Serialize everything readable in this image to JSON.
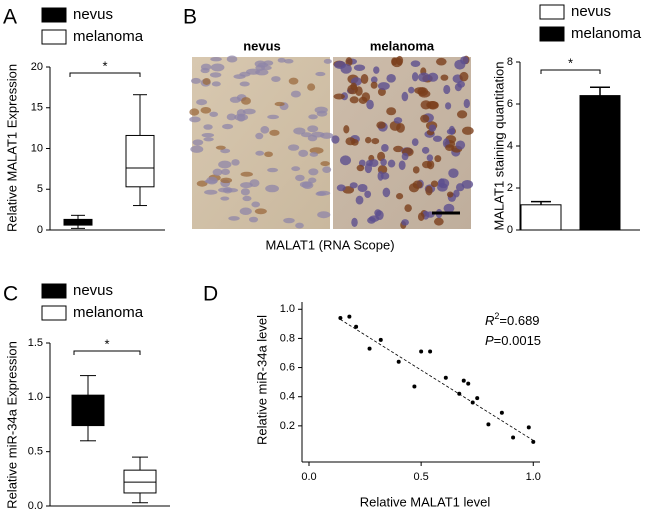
{
  "chart_data": [
    {
      "type": "box",
      "panel": "A",
      "y_label": "Relative MALAT1 Expression",
      "annotation": "*",
      "series": [
        {
          "name": "nevus",
          "color": "#000000",
          "min": 0.2,
          "q1": 0.6,
          "median": 0.9,
          "q3": 1.3,
          "max": 1.8
        },
        {
          "name": "melanoma",
          "color": "#ffffff",
          "min": 3,
          "q1": 5.3,
          "median": 7.6,
          "q3": 11.6,
          "max": 16.6
        }
      ],
      "ylim": [
        0,
        20
      ],
      "yticks": [
        0,
        5,
        10,
        15,
        20
      ]
    },
    {
      "type": "bar",
      "panel": "B",
      "y_label": "MALAT1 staining quantitation",
      "annotation": "*",
      "image_labels": [
        "nevus",
        "melanoma"
      ],
      "image_caption": "MALAT1 (RNA Scope)",
      "series": [
        {
          "name": "nevus",
          "color": "#ffffff",
          "value": 1.2,
          "error": 0.15
        },
        {
          "name": "melanoma",
          "color": "#000000",
          "value": 6.4,
          "error": 0.4
        }
      ],
      "ylim": [
        0,
        8
      ],
      "yticks": [
        0,
        2,
        4,
        6,
        8
      ]
    },
    {
      "type": "box",
      "panel": "C",
      "y_label": "Relative miR-34a Expression",
      "annotation": "*",
      "series": [
        {
          "name": "nevus",
          "color": "#000000",
          "min": 0.6,
          "q1": 0.74,
          "median": 0.88,
          "q3": 1.02,
          "max": 1.2
        },
        {
          "name": "melanoma",
          "color": "#ffffff",
          "min": 0.03,
          "q1": 0.12,
          "median": 0.22,
          "q3": 0.33,
          "max": 0.45
        }
      ],
      "ylim": [
        0,
        1.5
      ],
      "yticks": [
        {
          "value": 0,
          "label": "0.0"
        },
        {
          "value": 0.5,
          "label": "0.5"
        },
        {
          "value": 1,
          "label": "1.0"
        },
        {
          "value": 1.5,
          "label": "1.5"
        }
      ]
    },
    {
      "type": "scatter",
      "panel": "D",
      "x_label": "Relative MALAT1 level",
      "y_label": "Relative miR-34a level",
      "color": "#000000",
      "x": [
        0.14,
        0.18,
        0.21,
        0.27,
        0.32,
        0.4,
        0.47,
        0.5,
        0.54,
        0.61,
        0.67,
        0.69,
        0.71,
        0.73,
        0.75,
        0.8,
        0.86,
        0.91,
        0.98,
        1.0
      ],
      "y": [
        0.94,
        0.95,
        0.88,
        0.73,
        0.79,
        0.64,
        0.47,
        0.71,
        0.71,
        0.53,
        0.42,
        0.51,
        0.49,
        0.36,
        0.39,
        0.21,
        0.29,
        0.12,
        0.19,
        0.09
      ],
      "fit_line": {
        "x": [
          0.14,
          1.0
        ],
        "y": [
          0.93,
          0.1
        ]
      },
      "r_squared": {
        "symbol": "R",
        "exponent": "2",
        "text": "=0.689"
      },
      "p_value": {
        "symbol": "P",
        "text": "=0.0015"
      },
      "xlim": [
        0,
        1.03
      ],
      "xticks": [
        {
          "value": 0,
          "label": "0.0"
        },
        0.5,
        {
          "value": 1,
          "label": "1.0"
        }
      ],
      "ylim": [
        0,
        1.05
      ],
      "yticks": [
        0.2,
        0.4,
        0.6,
        0.8,
        {
          "value": 1,
          "label": "1.0"
        }
      ]
    }
  ]
}
